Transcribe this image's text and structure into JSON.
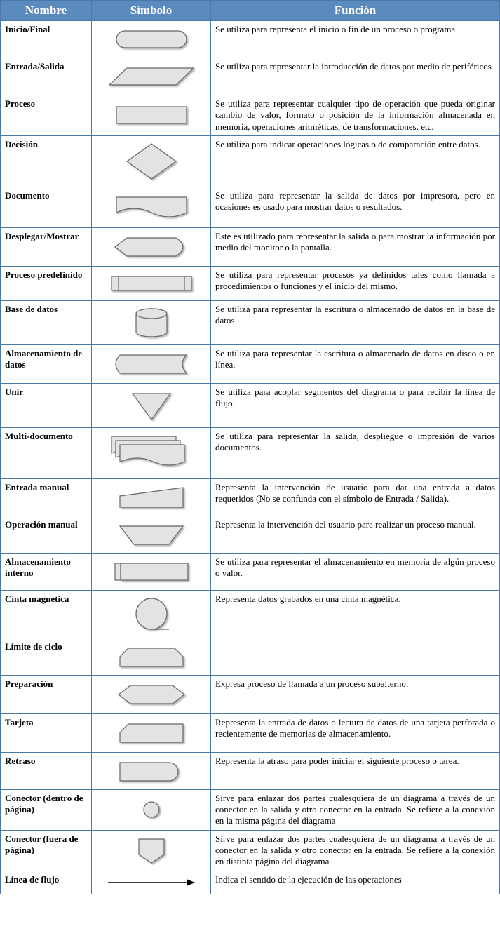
{
  "header": {
    "col1": "Nombre",
    "col2": "Símbolo",
    "col3": "Función",
    "bg_color": "#5b8abf",
    "text_color": "#ffffff",
    "fontsize": 17
  },
  "border_color": "#4a78a8",
  "shape_fill": "#e3e3e3",
  "shape_stroke": "#666666",
  "shape_stroke_width": 1.2,
  "rows": [
    {
      "name": "Inicio/Final",
      "symbol": "terminator",
      "func": "Se utiliza para representa el inicio o fin de un proceso o programa"
    },
    {
      "name": "Entrada/Salida",
      "symbol": "parallelogram",
      "func": "Se utiliza para representar la introducción de datos por medio de periféricos"
    },
    {
      "name": "Proceso",
      "symbol": "rectangle",
      "func": "Se utiliza para representar cualquier tipo de operación que pueda originar cambio de valor, formato o posición de la información almacenada en memoria, operaciones aritméticas, de transformaciones, etc."
    },
    {
      "name": "Decisión",
      "symbol": "diamond",
      "func": "Se utiliza para indicar operaciones lógicas o de comparación entre datos."
    },
    {
      "name": "Documento",
      "symbol": "document",
      "func": "Se utiliza para representar la salida de datos por impresora, pero en ocasiones es usado para mostrar datos o resultados."
    },
    {
      "name": "Desplegar/Mostrar",
      "symbol": "display",
      "func": "Este es utilizado para representar la salida o para mostrar la información por medio del monitor o la pantalla."
    },
    {
      "name": "Proceso predefinido",
      "symbol": "predefined",
      "func": "Se utiliza para representar procesos ya definidos tales como llamada a procedimientos o funciones y el inicio del mismo."
    },
    {
      "name": "Base de datos",
      "symbol": "database",
      "func": "Se utiliza para representar la escritura o almacenado de datos en la base de datos."
    },
    {
      "name": "Almacenamiento de datos",
      "symbol": "storage",
      "func": "Se utiliza para representar la escritura o almacenado de datos en disco o en línea."
    },
    {
      "name": "Unir",
      "symbol": "merge",
      "func": "Se utiliza para acoplar segmentos del diagrama o para recibir la línea de flujo."
    },
    {
      "name": "Multi-documento",
      "symbol": "multidoc",
      "func": "Se utiliza para representar la salida, despliegue o impresión de varios documentos."
    },
    {
      "name": "Entrada manual",
      "symbol": "manualinput",
      "func": "Representa la intervención de usuario para dar una entrada a datos requeridos (No se confunda con el símbolo de Entrada / Salida)."
    },
    {
      "name": "Operación manual",
      "symbol": "manualop",
      "func": "Representa la intervención del usuario para realizar un proceso manual."
    },
    {
      "name": "Almacenamiento interno",
      "symbol": "internalstorage",
      "func": "Se utiliza para representar el almacenamiento en memoria de algún proceso o valor."
    },
    {
      "name": "Cinta magnética",
      "symbol": "tape",
      "func": "Representa datos grabados en una cinta magnética."
    },
    {
      "name": "Límite de ciclo",
      "symbol": "looplimit",
      "func": ""
    },
    {
      "name": "Preparación",
      "symbol": "preparation",
      "func": "Expresa proceso de llamada a un proceso subalterno."
    },
    {
      "name": "Tarjeta",
      "symbol": "card",
      "func": "Representa la entrada de datos o lectura de datos de una tarjeta perforada o recientemente de memorias de almacenamiento."
    },
    {
      "name": "Retraso",
      "symbol": "delay",
      "func": "Representa la atraso para poder iniciar el siguiente proceso o tarea."
    },
    {
      "name": "Conector (dentro de página)",
      "symbol": "connector",
      "func": "Sirve para enlazar dos partes cualesquiera de un diagrama a través de un conector en la salida y otro conector en la entrada. Se refiere a la conexión en la misma página del diagrama"
    },
    {
      "name": "Conector (fuera de página)",
      "symbol": "offpage",
      "func": "Sirve para enlazar dos partes cualesquiera de un diagrama a través de un conector en la salida y otro conector en la entrada. Se refiere a la conexión en distinta página del diagrama"
    },
    {
      "name": "Línea de flujo",
      "symbol": "arrow",
      "func": "Indica el sentido de la ejecución de las operaciones"
    }
  ]
}
